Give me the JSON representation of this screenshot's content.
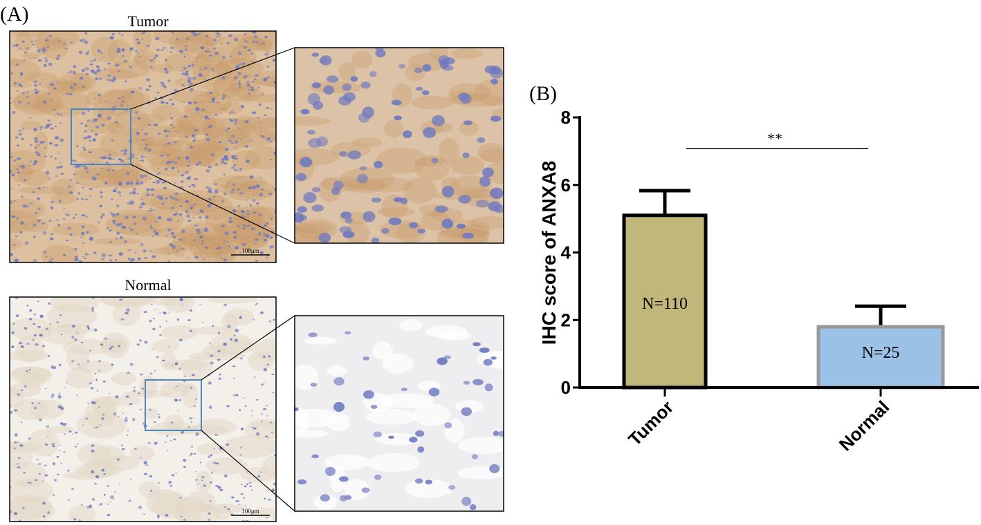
{
  "panel_a": {
    "label": "(A)",
    "tumor_title": "Tumor",
    "normal_title": "Normal",
    "scale_bar": "100μm",
    "colors": {
      "tumor_stain": "#d9b58e",
      "normal_stain": "#f2ede6",
      "nuclei": "#6f79c0",
      "roi_box": "#4a86c0"
    }
  },
  "panel_b": {
    "label": "(B)"
  },
  "chart_data": {
    "type": "bar",
    "categories": [
      "Tumor",
      "Normal"
    ],
    "values": [
      5.1,
      1.8
    ],
    "error_upper": [
      5.83,
      2.41
    ],
    "bar_labels": [
      "N=110",
      "N=25"
    ],
    "bar_colors": [
      "#c2b77b",
      "#9cc1e6"
    ],
    "bar_edge_colors": [
      "#000000",
      "#999999"
    ],
    "ylabel": "IHC score of ANXA8",
    "xlabel": "",
    "ylim": [
      0,
      8
    ],
    "yticks": [
      "0",
      "2",
      "4",
      "6",
      "8"
    ],
    "significance": "**",
    "grid": false
  }
}
